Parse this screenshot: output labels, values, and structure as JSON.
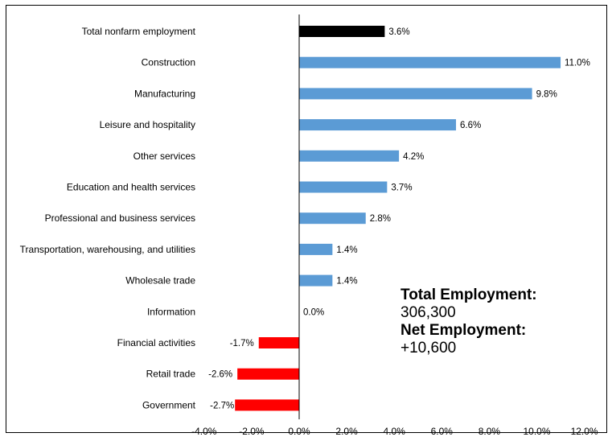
{
  "chart_data": {
    "type": "bar",
    "orientation": "horizontal",
    "categories": [
      "Total nonfarm employment",
      "Construction",
      "Manufacturing",
      "Leisure and hospitality",
      "Other services",
      "Education and health services",
      "Professional and business services",
      "Transportation, warehousing, and utilities",
      "Wholesale trade",
      "Information",
      "Financial activities",
      "Retail trade",
      "Government"
    ],
    "values": [
      3.6,
      11.0,
      9.8,
      6.6,
      4.2,
      3.7,
      2.8,
      1.4,
      1.4,
      0.0,
      -1.7,
      -2.6,
      -2.7
    ],
    "value_labels": [
      "3.6%",
      "11.0%",
      "9.8%",
      "6.6%",
      "4.2%",
      "3.7%",
      "2.8%",
      "1.4%",
      "1.4%",
      "0.0%",
      "-1.7%",
      "-2.6%",
      "-2.7%"
    ],
    "xlim": [
      -4,
      12
    ],
    "xticks": [
      -4,
      -2,
      0,
      2,
      4,
      6,
      8,
      10,
      12
    ],
    "xtick_labels": [
      "-4.0%",
      "-2.0%",
      "0.0%",
      "2.0%",
      "4.0%",
      "6.0%",
      "8.0%",
      "10.0%",
      "12.0%"
    ],
    "title": "",
    "xlabel": "",
    "ylabel": "",
    "grid": false,
    "legend": "none",
    "colors": {
      "total": "#000000",
      "positive": "#5b9bd5",
      "negative": "#ff0000"
    }
  },
  "summary": {
    "total_heading": "Total Employment:",
    "total_value": "306,300",
    "net_heading": "Net Employment:",
    "net_value": "+10,600"
  }
}
